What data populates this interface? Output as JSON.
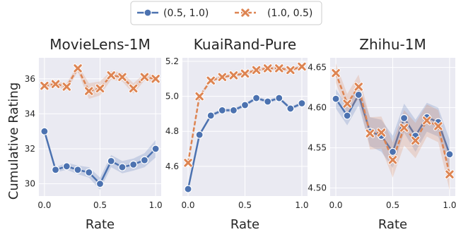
{
  "chart_data": {
    "type": "line",
    "legend": {
      "placement": "top-center",
      "entries": [
        {
          "name": "(0.5, 1.0)",
          "color": "#4c72b0",
          "marker": "circle",
          "linestyle": "solid"
        },
        {
          "name": "(1.0, 0.5)",
          "color": "#dd8452",
          "marker": "x",
          "linestyle": "dashed"
        }
      ]
    },
    "ylabel": "Cumulative Rating",
    "grid": true,
    "panels": [
      {
        "title": "MovieLens-1M",
        "xlabel": "Rate",
        "xlim": [
          -0.05,
          1.05
        ],
        "ylim": [
          29.3,
          37.2
        ],
        "xticks": [
          0.0,
          0.5,
          1.0
        ],
        "xtick_labels": [
          "0.0",
          "0.5",
          "1.0"
        ],
        "yticks": [
          30,
          32,
          34,
          36
        ],
        "ytick_labels": [
          "30",
          "32",
          "34",
          "36"
        ],
        "x": [
          0.0,
          0.1,
          0.2,
          0.3,
          0.4,
          0.5,
          0.6,
          0.7,
          0.8,
          0.9,
          1.0
        ],
        "series": [
          {
            "name": "(0.5, 1.0)",
            "values": [
              33.0,
              30.8,
              31.0,
              30.8,
              30.65,
              30.0,
              31.3,
              30.95,
              31.1,
              31.35,
              32.0
            ],
            "band": [
              0.1,
              0.15,
              0.2,
              0.25,
              0.3,
              0.35,
              0.35,
              0.35,
              0.35,
              0.4,
              0.5
            ]
          },
          {
            "name": "(1.0, 0.5)",
            "values": [
              35.6,
              35.7,
              35.55,
              36.6,
              35.3,
              35.45,
              36.2,
              36.1,
              35.45,
              36.1,
              36.0
            ],
            "band": [
              0.1,
              0.15,
              0.2,
              0.2,
              0.45,
              0.4,
              0.25,
              0.25,
              0.3,
              0.2,
              0.2
            ]
          }
        ]
      },
      {
        "title": "KuaiRand-Pure",
        "xlabel": "Rate",
        "xlim": [
          -0.05,
          1.05
        ],
        "ylim": [
          4.43,
          5.22
        ],
        "xticks": [
          0.0,
          0.5,
          1.0
        ],
        "xtick_labels": [
          "0.0",
          "0.5",
          "1.0"
        ],
        "yticks": [
          4.6,
          4.8,
          5.0,
          5.2
        ],
        "ytick_labels": [
          "4.6",
          "4.8",
          "5.0",
          "5.2"
        ],
        "x": [
          0.0,
          0.1,
          0.2,
          0.3,
          0.4,
          0.5,
          0.6,
          0.7,
          0.8,
          0.9,
          1.0
        ],
        "series": [
          {
            "name": "(0.5, 1.0)",
            "values": [
              4.47,
              4.78,
              4.89,
              4.92,
              4.92,
              4.95,
              4.99,
              4.97,
              4.99,
              4.93,
              4.96
            ],
            "band": [
              0.005,
              0.01,
              0.01,
              0.01,
              0.01,
              0.01,
              0.01,
              0.01,
              0.01,
              0.01,
              0.01
            ]
          },
          {
            "name": "(1.0, 0.5)",
            "values": [
              4.62,
              5.0,
              5.09,
              5.11,
              5.12,
              5.13,
              5.15,
              5.16,
              5.16,
              5.15,
              5.17
            ],
            "band": [
              0.005,
              0.01,
              0.01,
              0.01,
              0.01,
              0.01,
              0.01,
              0.01,
              0.01,
              0.01,
              0.01
            ]
          }
        ]
      },
      {
        "title": "Zhihu-1M",
        "xlabel": "Rate",
        "xlim": [
          -0.05,
          1.05
        ],
        "ylim": [
          4.49,
          4.662
        ],
        "xticks": [
          0.0,
          0.5,
          1.0
        ],
        "xtick_labels": [
          "0.0",
          "0.5",
          "1.0"
        ],
        "yticks": [
          4.5,
          4.55,
          4.6,
          4.65
        ],
        "ytick_labels": [
          "4.50",
          "4.55",
          "4.60",
          "4.65"
        ],
        "x": [
          0.0,
          0.1,
          0.2,
          0.3,
          0.4,
          0.5,
          0.6,
          0.7,
          0.8,
          0.9,
          1.0
        ],
        "series": [
          {
            "name": "(0.5, 1.0)",
            "values": [
              4.611,
              4.59,
              4.616,
              4.57,
              4.565,
              4.545,
              4.587,
              4.565,
              4.588,
              4.582,
              4.542
            ],
            "band": [
              0.012,
              0.012,
              0.013,
              0.018,
              0.02,
              0.02,
              0.018,
              0.02,
              0.018,
              0.018,
              0.018
            ]
          },
          {
            "name": "(1.0, 0.5)",
            "values": [
              4.643,
              4.605,
              4.626,
              4.568,
              4.569,
              4.535,
              4.575,
              4.559,
              4.584,
              4.577,
              4.517
            ],
            "band": [
              0.012,
              0.012,
              0.015,
              0.02,
              0.02,
              0.022,
              0.022,
              0.022,
              0.02,
              0.02,
              0.02
            ]
          }
        ]
      }
    ]
  }
}
